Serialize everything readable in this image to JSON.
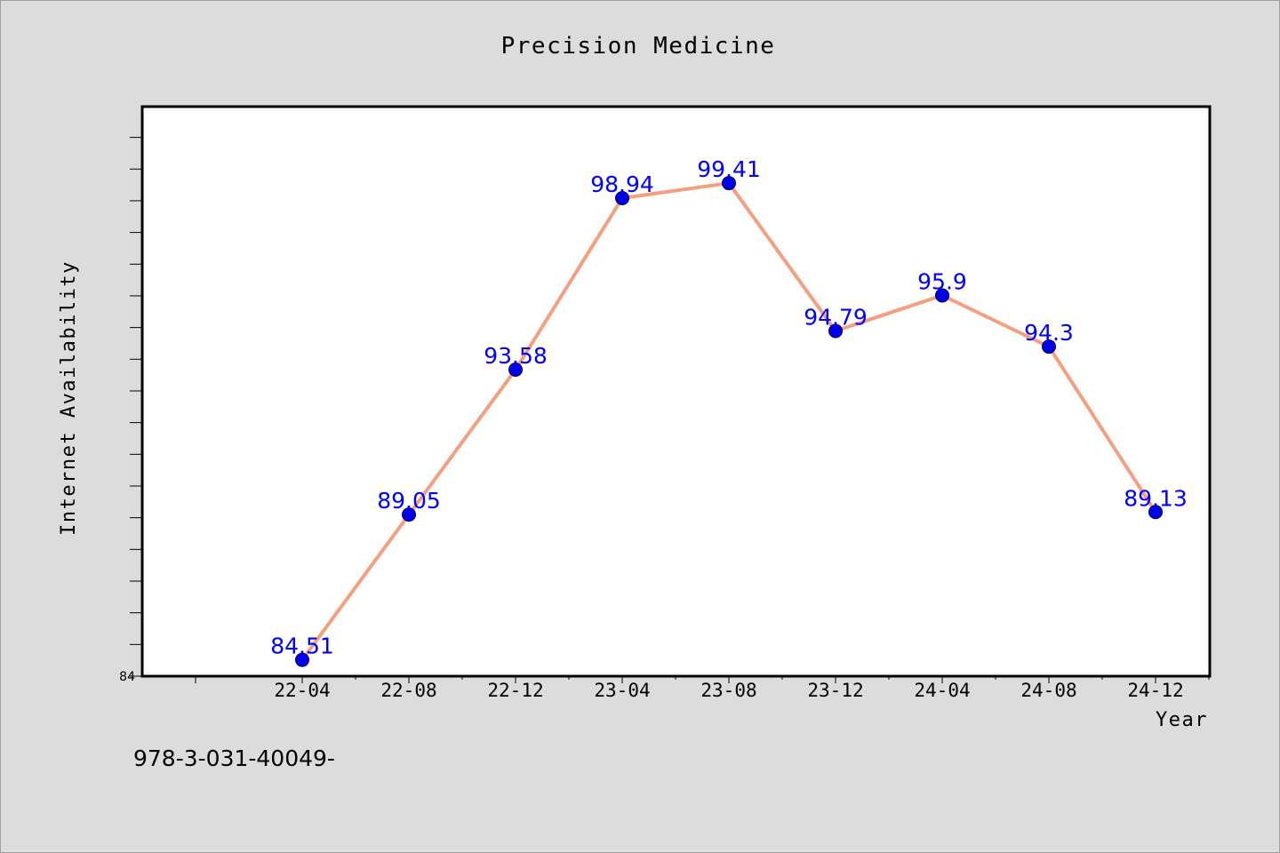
{
  "chart_data": {
    "type": "line",
    "title": "Precision Medicine",
    "xlabel": "Year",
    "ylabel": "Internet Availability",
    "categories": [
      "22-04",
      "22-08",
      "22-12",
      "23-04",
      "23-08",
      "23-12",
      "24-04",
      "24-08",
      "24-12"
    ],
    "series": [
      {
        "values": [
          84.51,
          89.05,
          93.58,
          98.94,
          99.41,
          94.79,
          95.9,
          94.3,
          89.13
        ],
        "labels": [
          "84.51",
          "89.05",
          "93.58",
          "98.94",
          "99.41",
          "94.79",
          "95.9",
          "94.3",
          "89.13"
        ]
      }
    ],
    "y_tick_labels": [
      "84"
    ],
    "ylim": [
      84,
      101.8
    ],
    "grid": false,
    "legend": "none",
    "colors": {
      "line": "#f4a080",
      "marker": "#0000ee",
      "data_label": "#0000ff",
      "plot_background": "#ffffff",
      "page_background": "#dcdcdc"
    }
  },
  "footnote": "978-3-031-40049-"
}
